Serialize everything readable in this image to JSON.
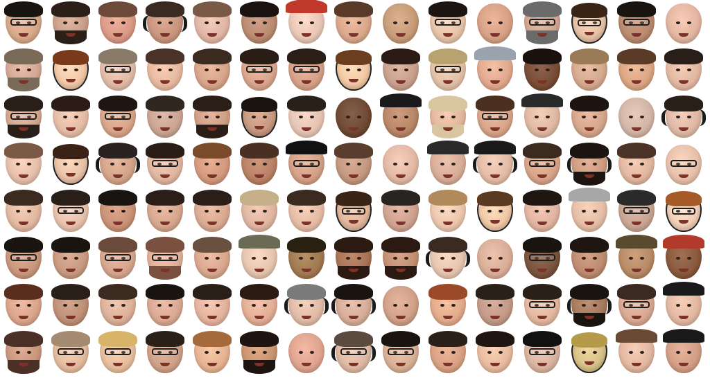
{
  "grid": {
    "rows": 8,
    "cols": 15
  },
  "faces": [
    {
      "skin": "#d7a98a",
      "hair": "#1a1410",
      "glasses": true
    },
    {
      "skin": "#caa08a",
      "hair": "#2b1f18",
      "beard": true
    },
    {
      "skin": "#d99a86",
      "hair": "#6b4a3a"
    },
    {
      "skin": "#c9957e",
      "hair": "#3a2a22",
      "headset": true
    },
    {
      "skin": "#e0b6a6",
      "hair": "#7a5a46"
    },
    {
      "skin": "#b98b72",
      "hair": "#1a120e"
    },
    {
      "skin": "#e8c7b6",
      "hair": "#c0392b",
      "cap": "#c0392b"
    },
    {
      "skin": "#d9a88c",
      "hair": "#5a3b2a"
    },
    {
      "skin": "#c79c78",
      "hair": "#c79c78"
    },
    {
      "skin": "#e6c2a9",
      "hair": "#1b1410",
      "glasses": true
    },
    {
      "skin": "#d7a186",
      "hair": "#d7a186"
    },
    {
      "skin": "#d2a690",
      "hair": "#6b6b6b",
      "glasses": true,
      "beard": true
    },
    {
      "skin": "#e7c2a6",
      "hair": "#3a2416",
      "glasses": true,
      "cartoon": true
    },
    {
      "skin": "#b98a70",
      "hair": "#1a1410",
      "glasses": true
    },
    {
      "skin": "#e3b6a2",
      "hair": "#e3b6a2"
    },
    {
      "skin": "#d4a894",
      "hair": "#7a6a5a",
      "beard": true
    },
    {
      "skin": "#f2c9a8",
      "hair": "#7a3a1a",
      "cartoon": true
    },
    {
      "skin": "#e1bba7",
      "hair": "#8a7a6a",
      "glasses": true
    },
    {
      "skin": "#e6b9a0",
      "hair": "#4a3326"
    },
    {
      "skin": "#d7a58a",
      "hair": "#3b2a20"
    },
    {
      "skin": "#d8a68c",
      "hair": "#2a1d16",
      "glasses": true
    },
    {
      "skin": "#d6a188",
      "hair": "#2b1e16",
      "glasses": true
    },
    {
      "skin": "#f3c9a6",
      "hair": "#6a3e1e",
      "cartoon": true
    },
    {
      "skin": "#c9a08e",
      "hair": "#2b1b14"
    },
    {
      "skin": "#e2c0a6",
      "hair": "#b8a370",
      "glasses": true
    },
    {
      "skin": "#e1a98e",
      "hair": "#9aa3ad",
      "cap": "#9aa3ad"
    },
    {
      "skin": "#7a4e36",
      "hair": "#1a110c"
    },
    {
      "skin": "#d6a98f",
      "hair": "#9b7a57"
    },
    {
      "skin": "#dba684",
      "hair": "#5a3b28"
    },
    {
      "skin": "#e2b8a2",
      "hair": "#2a1e18"
    },
    {
      "skin": "#d3a68e",
      "hair": "#2a1f18",
      "glasses": true,
      "beard": true
    },
    {
      "skin": "#e4bca6",
      "hair": "#2b1d16"
    },
    {
      "skin": "#d7a58a",
      "hair": "#1f1612",
      "glasses": true
    },
    {
      "skin": "#caa594",
      "hair": "#2f2620"
    },
    {
      "skin": "#cf9f86",
      "hair": "#2a1e16",
      "beard": true
    },
    {
      "skin": "#c99a82",
      "hair": "#1a1410",
      "cartoon": true
    },
    {
      "skin": "#e6c4b4",
      "hair": "#2a201a"
    },
    {
      "skin": "#6f4a34",
      "hair": "#6f4a34"
    },
    {
      "skin": "#b88768",
      "hair": "#b52a2a",
      "cap": "#1a1a1a"
    },
    {
      "skin": "#e3b69e",
      "hair": "#d9c6a0",
      "beard": true
    },
    {
      "skin": "#d7a58a",
      "hair": "#4a2f1e",
      "glasses": true
    },
    {
      "skin": "#e0b9a2",
      "hair": "#2a2a2a",
      "cap": "#2a2a2a"
    },
    {
      "skin": "#d5a68c",
      "hair": "#1e1510"
    },
    {
      "skin": "#d2b5a6",
      "hair": "#d2b5a6"
    },
    {
      "skin": "#dfb9a6",
      "hair": "#2a1e18",
      "headset": true
    },
    {
      "skin": "#e6c0ab",
      "hair": "#7a5a46"
    },
    {
      "skin": "#e9c3a8",
      "hair": "#3a2216",
      "cartoon": true
    },
    {
      "skin": "#d4a48a",
      "hair": "#2a2220",
      "headset": true
    },
    {
      "skin": "#e0b6a0",
      "hair": "#2a1d16",
      "glasses": true
    },
    {
      "skin": "#d39a7e",
      "hair": "#7a4a2a"
    },
    {
      "skin": "#b98266",
      "hair": "#4a3022"
    },
    {
      "skin": "#d4a186",
      "hair": "#111111",
      "cap": "#111111",
      "glasses": true
    },
    {
      "skin": "#c3987e",
      "hair": "#5a3d2c"
    },
    {
      "skin": "#e2b9a4",
      "hair": "#e2b9a4"
    },
    {
      "skin": "#d7ad98",
      "hair": "#3a2a20",
      "cap": "#2a2a2a"
    },
    {
      "skin": "#e2bca6",
      "hair": "#1a1a1a",
      "cap": "#1a1a1a",
      "headset": true
    },
    {
      "skin": "#d7a48a",
      "hair": "#3b2a20",
      "glasses": true
    },
    {
      "skin": "#cf9c82",
      "hair": "#1b1410",
      "headset": true,
      "beard": true
    },
    {
      "skin": "#e1b7a0",
      "hair": "#4a3226"
    },
    {
      "skin": "#e6c0aa",
      "hair": "#e6c0aa",
      "glasses": true
    },
    {
      "skin": "#e2b8a0",
      "hair": "#3b2a20"
    },
    {
      "skin": "#e6c1ad",
      "hair": "#2a1e18",
      "glasses": true
    },
    {
      "skin": "#c99277",
      "hair": "#1a1410"
    },
    {
      "skin": "#d6a78f",
      "hair": "#2b1e18"
    },
    {
      "skin": "#d9aa92",
      "hair": "#2a1e18"
    },
    {
      "skin": "#e0b6a3",
      "hair": "#c5b08a"
    },
    {
      "skin": "#e4bca6",
      "hair": "#3a2a20"
    },
    {
      "skin": "#e1b79c",
      "hair": "#3a2416",
      "glasses": true,
      "cartoon": true
    },
    {
      "skin": "#cfa290",
      "hair": "#2a2420"
    },
    {
      "skin": "#ebc6ae",
      "hair": "#b08a5a"
    },
    {
      "skin": "#f0c9a7",
      "hair": "#5a3a20",
      "cartoon": true
    },
    {
      "skin": "#e0b4a0",
      "hair": "#1f1612"
    },
    {
      "skin": "#e4bda6",
      "hair": "#a7a7a7",
      "cap": "#a7a7a7"
    },
    {
      "skin": "#c8a592",
      "hair": "#2a2a2a",
      "glasses": true
    },
    {
      "skin": "#f2cfb6",
      "hair": "#a55a28",
      "glasses": true,
      "cartoon": true
    },
    {
      "skin": "#c9977c",
      "hair": "#1a1410",
      "glasses": true
    },
    {
      "skin": "#c79a80",
      "hair": "#1a1410"
    },
    {
      "skin": "#d6a58e",
      "hair": "#6a4a3a",
      "glasses": true
    },
    {
      "skin": "#e0af98",
      "hair": "#7a5040",
      "glasses": true,
      "beard": true
    },
    {
      "skin": "#d9a88e",
      "hair": "#6a5040"
    },
    {
      "skin": "#e6c4ae",
      "hair": "#6b6b55",
      "cap": "#6b6b55"
    },
    {
      "skin": "#a27a52",
      "hair": "#2a2010"
    },
    {
      "skin": "#a97456",
      "hair": "#2a1a12",
      "beard": true
    },
    {
      "skin": "#c28f72",
      "hair": "#2a1a12",
      "beard": true
    },
    {
      "skin": "#e6c4b0",
      "hair": "#3a2a22",
      "headset": true
    },
    {
      "skin": "#d9ae98",
      "hair": "#d9ae98"
    },
    {
      "skin": "#7a553e",
      "hair": "#1a1410",
      "glasses": true
    },
    {
      "skin": "#bd8c70",
      "hair": "#1f1612"
    },
    {
      "skin": "#b78b66",
      "hair": "#5a4a2e",
      "cap": "#5a4a2e"
    },
    {
      "skin": "#8a5a3e",
      "hair": "#b23a2a",
      "cap": "#b23a2a"
    },
    {
      "skin": "#dba58c",
      "hair": "#5a2e1e"
    },
    {
      "skin": "#bf9078",
      "hair": "#2a1e18"
    },
    {
      "skin": "#dcb19a",
      "hair": "#3a2a20"
    },
    {
      "skin": "#d9a993",
      "hair": "#1a1410"
    },
    {
      "skin": "#e3b39e",
      "hair": "#2a1e18"
    },
    {
      "skin": "#e2ae95",
      "hair": "#2a1a12"
    },
    {
      "skin": "#e0bca8",
      "hair": "#7a7a7a",
      "headset": true
    },
    {
      "skin": "#d6ad98",
      "hair": "#1a1410",
      "headset": true
    },
    {
      "skin": "#d0a088",
      "hair": "#d0a088"
    },
    {
      "skin": "#e1ab8c",
      "hair": "#9a4a28"
    },
    {
      "skin": "#c39a88",
      "hair": "#2a2018"
    },
    {
      "skin": "#e1b7a0",
      "hair": "#2a2018",
      "glasses": true
    },
    {
      "skin": "#a77a5e",
      "hair": "#1a1410",
      "headset": true,
      "beard": true
    },
    {
      "skin": "#d8a893",
      "hair": "#3a2a22",
      "glasses": true
    },
    {
      "skin": "#e2b8a2",
      "hair": "#1a1a1a",
      "cap": "#1a1a1a"
    },
    {
      "skin": "#c9977e",
      "hair": "#4a3026",
      "beard": true
    },
    {
      "skin": "#e3bb9e",
      "hair": "#a38a70",
      "glasses": true
    },
    {
      "skin": "#e6be9e",
      "hair": "#d8b46a",
      "glasses": true
    },
    {
      "skin": "#cfa088",
      "hair": "#2a2018",
      "glasses": true
    },
    {
      "skin": "#e4b392",
      "hair": "#a66a3a"
    },
    {
      "skin": "#c9946f",
      "hair": "#1f1510",
      "beard": true
    },
    {
      "skin": "#dea490",
      "hair": "#dea490"
    },
    {
      "skin": "#ddb8a3",
      "hair": "#5a4a40",
      "headset": true,
      "glasses": true
    },
    {
      "skin": "#d8b096",
      "hair": "#1a1410",
      "glasses": true
    },
    {
      "skin": "#d8a183",
      "hair": "#2a2018"
    },
    {
      "skin": "#e6bb9f",
      "hair": "#1f1612"
    },
    {
      "skin": "#d9b4a0",
      "hair": "#111111",
      "glasses": true
    },
    {
      "skin": "#d8c28a",
      "hair": "#b59a4a",
      "cartoon": true
    },
    {
      "skin": "#e2b8a0",
      "hair": "#6a4a34",
      "cap": "#6a4a34"
    },
    {
      "skin": "#d29f86",
      "hair": "#1a1a1a",
      "cap": "#1a1a1a"
    }
  ]
}
